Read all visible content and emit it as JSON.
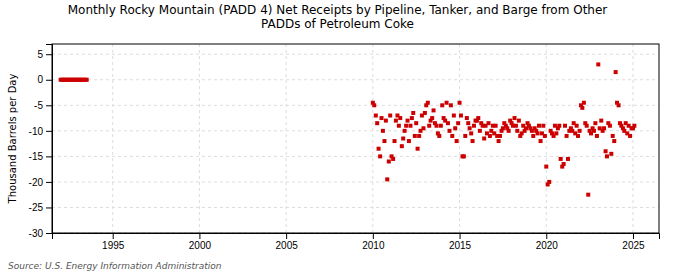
{
  "chart_data": {
    "type": "scatter",
    "title": "Monthly Rocky Mountain (PADD 4) Net Receipts by Pipeline, Tanker, and Barge from Other\nPADDs of Petroleum Coke",
    "ylabel": "Thousand Barrels per Day",
    "source": "Source: U.S. Energy Information Administration",
    "color": "#cc0000",
    "marker": "square",
    "grid": true,
    "xlim": [
      1991.5,
      2026.5
    ],
    "ylim": [
      -30,
      7
    ],
    "xticks": [
      1995,
      2000,
      2005,
      2010,
      2015,
      2020,
      2025
    ],
    "yticks": [
      5,
      0,
      -5,
      -10,
      -15,
      -20,
      -25,
      -30
    ],
    "x": [
      1992.0,
      1992.08,
      1992.17,
      1992.25,
      1992.33,
      1992.42,
      1992.5,
      1992.58,
      1992.67,
      1992.75,
      1992.83,
      1992.92,
      1993.0,
      1993.08,
      1993.17,
      1993.25,
      1993.33,
      1993.42,
      1993.5,
      2010.0,
      2010.08,
      2010.17,
      2010.25,
      2010.33,
      2010.42,
      2010.5,
      2010.58,
      2010.67,
      2010.75,
      2010.83,
      2010.92,
      2011.0,
      2011.08,
      2011.17,
      2011.25,
      2011.33,
      2011.42,
      2011.5,
      2011.58,
      2011.67,
      2011.75,
      2011.83,
      2011.92,
      2012.0,
      2012.08,
      2012.17,
      2012.25,
      2012.33,
      2012.42,
      2012.5,
      2012.58,
      2012.67,
      2012.75,
      2012.83,
      2012.92,
      2013.0,
      2013.08,
      2013.17,
      2013.25,
      2013.33,
      2013.42,
      2013.5,
      2013.58,
      2013.67,
      2013.75,
      2013.83,
      2013.92,
      2014.0,
      2014.08,
      2014.17,
      2014.25,
      2014.33,
      2014.42,
      2014.5,
      2014.58,
      2014.67,
      2014.75,
      2014.83,
      2014.92,
      2015.0,
      2015.08,
      2015.17,
      2015.25,
      2015.33,
      2015.42,
      2015.5,
      2015.58,
      2015.67,
      2015.75,
      2015.83,
      2015.92,
      2016.0,
      2016.08,
      2016.17,
      2016.25,
      2016.33,
      2016.42,
      2016.5,
      2016.58,
      2016.67,
      2016.75,
      2016.83,
      2016.92,
      2017.0,
      2017.08,
      2017.17,
      2017.25,
      2017.33,
      2017.42,
      2017.5,
      2017.58,
      2017.67,
      2017.75,
      2017.83,
      2017.92,
      2018.0,
      2018.08,
      2018.17,
      2018.25,
      2018.33,
      2018.42,
      2018.5,
      2018.58,
      2018.67,
      2018.75,
      2018.83,
      2018.92,
      2019.0,
      2019.08,
      2019.17,
      2019.25,
      2019.33,
      2019.42,
      2019.5,
      2019.58,
      2019.67,
      2019.75,
      2019.83,
      2019.92,
      2020.0,
      2020.08,
      2020.17,
      2020.25,
      2020.33,
      2020.42,
      2020.5,
      2020.58,
      2020.67,
      2020.75,
      2020.83,
      2020.92,
      2021.0,
      2021.08,
      2021.17,
      2021.25,
      2021.33,
      2021.42,
      2021.5,
      2021.58,
      2021.67,
      2021.75,
      2021.83,
      2021.92,
      2022.0,
      2022.08,
      2022.17,
      2022.25,
      2022.33,
      2022.42,
      2022.5,
      2022.58,
      2022.67,
      2022.75,
      2022.83,
      2022.92,
      2023.0,
      2023.08,
      2023.17,
      2023.25,
      2023.33,
      2023.42,
      2023.5,
      2023.58,
      2023.67,
      2023.75,
      2023.83,
      2023.92,
      2024.0,
      2024.08,
      2024.17,
      2024.25,
      2024.33,
      2024.42,
      2024.5,
      2024.58,
      2024.67,
      2024.75,
      2024.83,
      2024.92,
      2025.0,
      2025.08
    ],
    "values": [
      0,
      0,
      0,
      0,
      0,
      0,
      0,
      0,
      0,
      0,
      0,
      0,
      0,
      0,
      0,
      0,
      0,
      0,
      0,
      -4.5,
      -5.0,
      -7.0,
      -8.5,
      -13.5,
      -15.0,
      -7.5,
      -10.0,
      -12.0,
      -8.0,
      -19.5,
      -16.0,
      -7.0,
      -15.0,
      -15.5,
      -12.0,
      -8.0,
      -7.0,
      -9.0,
      -7.5,
      -13.0,
      -11.5,
      -10.0,
      -9.0,
      -8.0,
      -12.0,
      -9.0,
      -7.5,
      -6.5,
      -11.0,
      -8.5,
      -13.5,
      -11.0,
      -10.0,
      -7.0,
      -9.5,
      -6.5,
      -5.0,
      -4.5,
      -9.0,
      -8.0,
      -7.5,
      -6.0,
      -8.5,
      -9.0,
      -10.5,
      -11.0,
      -9.0,
      -5.0,
      -7.5,
      -8.0,
      -4.5,
      -8.5,
      -10.0,
      -5.0,
      -11.0,
      -7.0,
      -9.5,
      -12.0,
      -8.5,
      -4.5,
      -7.0,
      -15.0,
      -15.0,
      -11.0,
      -7.5,
      -8.5,
      -9.5,
      -10.5,
      -12.0,
      -9.0,
      -8.0,
      -8.0,
      -7.5,
      -10.0,
      -8.5,
      -9.0,
      -11.5,
      -9.0,
      -10.5,
      -8.5,
      -11.0,
      -10.0,
      -9.0,
      -10.5,
      -9.0,
      -11.0,
      -12.0,
      -11.0,
      -10.0,
      -9.5,
      -8.5,
      -9.0,
      -9.5,
      -10.0,
      -8.0,
      -8.5,
      -9.0,
      -7.5,
      -9.0,
      -10.0,
      -8.0,
      -11.0,
      -10.5,
      -9.0,
      -10.0,
      -9.5,
      -8.5,
      -9.0,
      -9.5,
      -10.0,
      -11.0,
      -9.5,
      -10.0,
      -10.5,
      -9.0,
      -12.0,
      -10.5,
      -9.0,
      -11.0,
      -17.0,
      -20.5,
      -20.0,
      -10.0,
      -10.5,
      -11.0,
      -9.0,
      -10.5,
      -9.5,
      -9.0,
      -15.5,
      -17.0,
      -16.5,
      -9.0,
      -11.0,
      -15.5,
      -10.0,
      -9.5,
      -10.0,
      -8.5,
      -10.5,
      -9.0,
      -11.0,
      -10.0,
      -5.0,
      -5.5,
      -4.5,
      -8.5,
      -9.0,
      -22.5,
      -10.0,
      -10.5,
      -9.5,
      -10.0,
      -8.5,
      -11.0,
      3.0,
      -9.5,
      -8.0,
      -10.0,
      -9.5,
      -14.0,
      -15.0,
      -8.5,
      -9.0,
      -14.5,
      -11.0,
      -12.0,
      1.5,
      -4.5,
      -5.0,
      -8.5,
      -9.0,
      -9.5,
      -10.0,
      -8.5,
      -10.5,
      -9.0,
      -11.0,
      -9.5,
      -9.5,
      -9.0
    ]
  }
}
